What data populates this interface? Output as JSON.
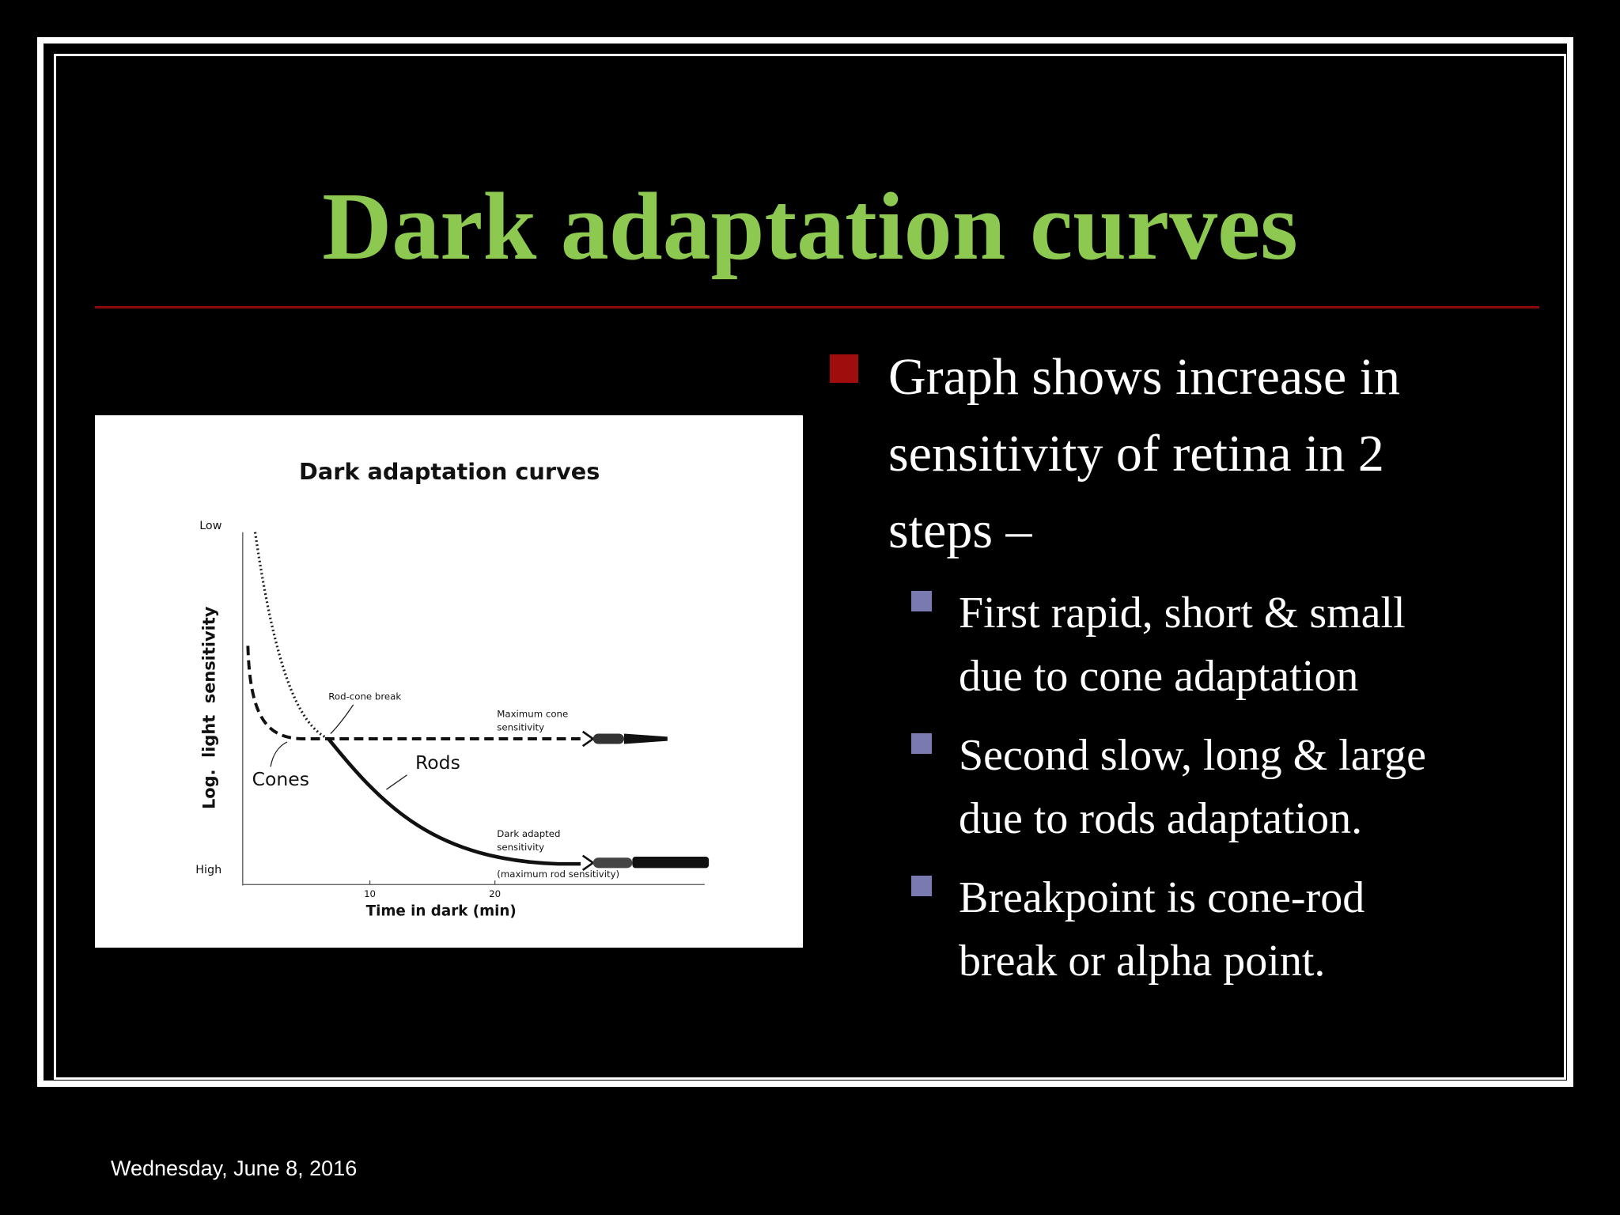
{
  "slide": {
    "title": "Dark adaptation curves",
    "figure": {
      "title": "Dark adaptation curves",
      "y_axis_top": "Low",
      "y_axis_bottom": "High",
      "y_axis_label": "Log.  light  sensitivity",
      "x_axis_label": "Time in dark (min)",
      "x_ticks": [
        10,
        20
      ],
      "rod_cone_break": "Rod-cone break",
      "max_cone": [
        "Maximum cone",
        "sensitivity"
      ],
      "rods": "Rods",
      "cones": "Cones",
      "dark_adapted": [
        "Dark adapted",
        "sensitivity",
        "(maximum rod sensitivity)"
      ]
    },
    "bullets": [
      {
        "lines": [
          "Graph shows increase in",
          "sensitivity of retina in 2",
          "steps –"
        ],
        "sub": [
          {
            "lines": [
              "First rapid, short & small",
              "due to cone adaptation"
            ]
          },
          {
            "lines": [
              "Second slow, long & large",
              "due to rods adaptation."
            ]
          },
          {
            "lines": [
              "Breakpoint is cone-rod",
              "break or alpha point."
            ]
          }
        ]
      }
    ],
    "footer_date": "Wednesday, June 8, 2016"
  }
}
